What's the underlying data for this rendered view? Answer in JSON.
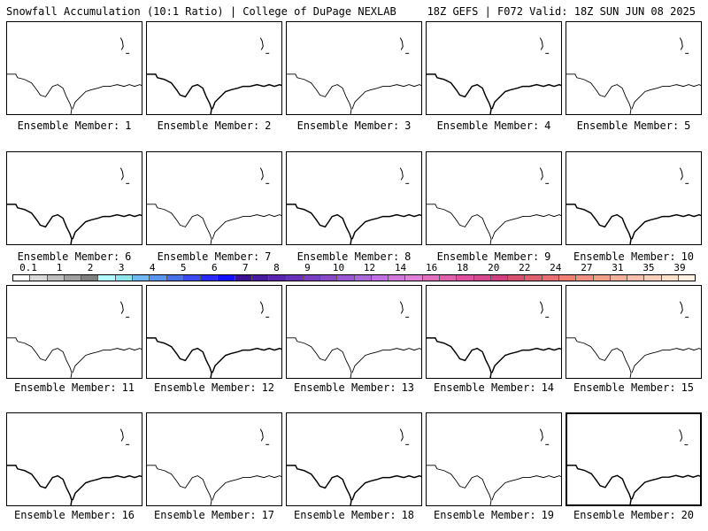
{
  "header": {
    "left": "Snowfall Accumulation (10:1 Ratio) | College of DuPage NEXLAB",
    "right": "18Z GEFS | F072 Valid: 18Z SUN JUN 08 2025"
  },
  "member_label_prefix": "Ensemble Member:",
  "members": [
    1,
    2,
    3,
    4,
    5,
    6,
    7,
    8,
    9,
    10,
    11,
    12,
    13,
    14,
    15,
    16,
    17,
    18,
    19,
    20
  ],
  "selected_member": 20,
  "colorbar": {
    "ticks": [
      "0.1",
      "1",
      "2",
      "3",
      "4",
      "5",
      "6",
      "7",
      "8",
      "9",
      "10",
      "12",
      "14",
      "16",
      "18",
      "20",
      "22",
      "24",
      "27",
      "31",
      "35",
      "39"
    ],
    "colors": [
      "#ffffff",
      "#d9d9d9",
      "#bdbdbd",
      "#a0a0a0",
      "#808080",
      "#b3ffff",
      "#8ee5ee",
      "#6fb9f5",
      "#5a95f0",
      "#4a70e8",
      "#3a4cf0",
      "#2a2af8",
      "#1010ff",
      "#3a1090",
      "#4a1aa0",
      "#5a24b0",
      "#6a30b8",
      "#7a3cc0",
      "#8a48c8",
      "#9a58d0",
      "#aa68d8",
      "#c070e0",
      "#d078d8",
      "#e080d8",
      "#e070c0",
      "#e060b0",
      "#e050a0",
      "#d84890",
      "#d04080",
      "#d85070",
      "#e06070",
      "#e87070",
      "#f08070",
      "#f09080",
      "#f0a088",
      "#f4b098",
      "#f8c0a8",
      "#fbd0b8",
      "#fde0c8",
      "#fff0e0"
    ]
  }
}
